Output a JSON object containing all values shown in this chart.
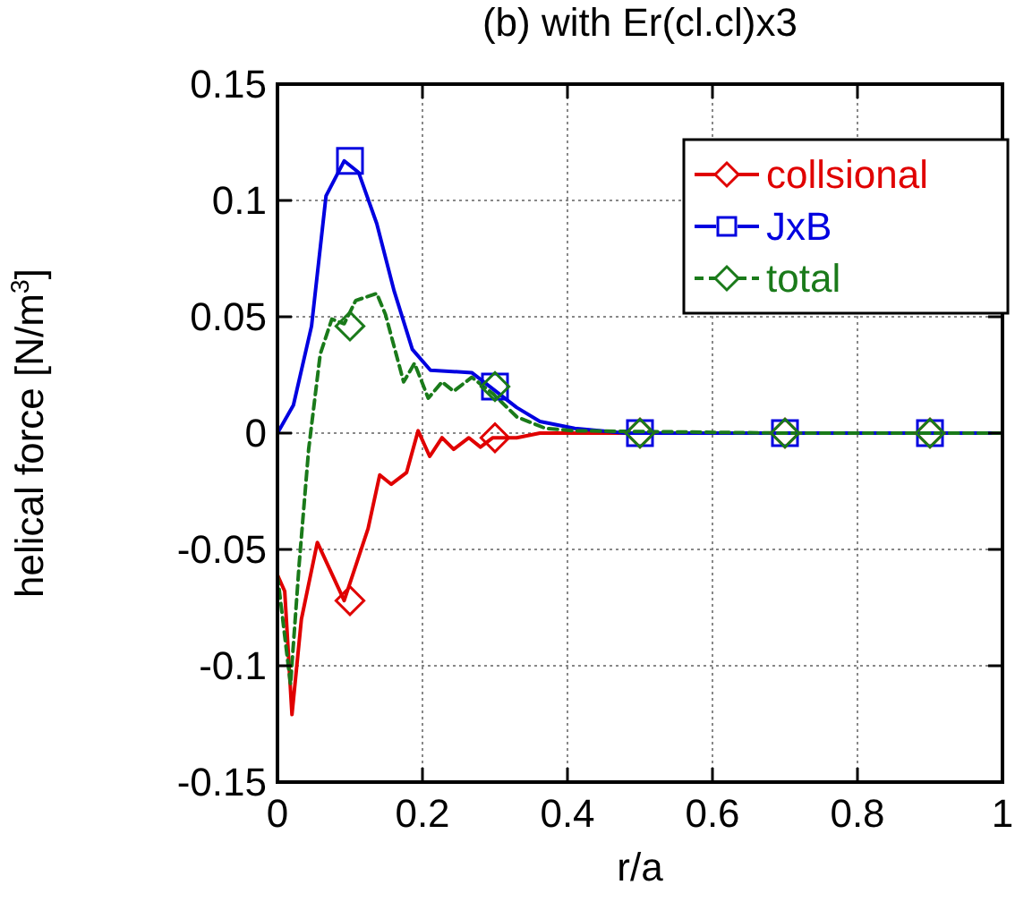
{
  "chart_data": {
    "type": "line",
    "title": "(b) with Er(cl.cl)x3",
    "xlabel": "r/a",
    "ylabel": "helical force [N/m$^{3}$]",
    "xlim": [
      0,
      1
    ],
    "xticks": [
      0,
      0.2,
      0.4,
      0.6,
      0.8,
      1
    ],
    "ylim": [
      -0.15,
      0.15
    ],
    "yticks": [
      -0.15,
      -0.1,
      -0.05,
      0,
      0.05,
      0.1,
      0.15
    ],
    "grid": true,
    "legend": "top right",
    "series": [
      {
        "marker": "none",
        "line_style": "solid",
        "color": "#e00000",
        "x": [
          0,
          0.01,
          0.02,
          0.033,
          0.055,
          0.092,
          0.125,
          0.141,
          0.157,
          0.178,
          0.194,
          0.21,
          0.227,
          0.243,
          0.264,
          0.28,
          0.297,
          0.33,
          0.362,
          0.5,
          0.7,
          1
        ],
        "values": [
          -0.061,
          -0.068,
          -0.121,
          -0.08,
          -0.047,
          -0.072,
          -0.041,
          -0.018,
          -0.022,
          -0.017,
          0.001,
          -0.01,
          -0.002,
          -0.007,
          -0.002,
          -0.006,
          -0.002,
          -0.002,
          0,
          0,
          0,
          0
        ]
      },
      {
        "marker": "none",
        "line_style": "solid",
        "color": "#0000e0",
        "x": [
          0,
          0.022,
          0.047,
          0.067,
          0.092,
          0.112,
          0.137,
          0.161,
          0.186,
          0.211,
          0.268,
          0.297,
          0.33,
          0.362,
          0.41,
          0.48,
          0.7,
          1
        ],
        "values": [
          0,
          0.012,
          0.046,
          0.102,
          0.117,
          0.112,
          0.09,
          0.061,
          0.036,
          0.027,
          0.026,
          0.019,
          0.011,
          0.005,
          0.002,
          0,
          0,
          0
        ]
      },
      {
        "marker": "none",
        "line_style": "dashed",
        "color": "#1a7a1a",
        "x": [
          0,
          0.018,
          0.03,
          0.043,
          0.059,
          0.075,
          0.092,
          0.108,
          0.137,
          0.149,
          0.174,
          0.189,
          0.208,
          0.227,
          0.243,
          0.268,
          0.297,
          0.33,
          0.37,
          0.41,
          0.7,
          1
        ],
        "values": [
          -0.061,
          -0.108,
          -0.056,
          -0.007,
          0.034,
          0.049,
          0.047,
          0.057,
          0.06,
          0.051,
          0.022,
          0.03,
          0.015,
          0.022,
          0.018,
          0.024,
          0.017,
          0.007,
          0.002,
          0.001,
          0,
          0
        ]
      },
      {
        "type": "scatter",
        "name": "collsional",
        "marker": "diamond",
        "line_style": "solid",
        "color": "#e00000",
        "x": [
          0.1,
          0.3,
          0.5,
          0.7,
          0.9
        ],
        "values": [
          -0.072,
          -0.002,
          0,
          0,
          0
        ]
      },
      {
        "type": "scatter",
        "name": "JxB",
        "marker": "square",
        "line_style": "solid",
        "color": "#0000e0",
        "x": [
          0.1,
          0.3,
          0.5,
          0.7,
          0.9
        ],
        "values": [
          0.117,
          0.02,
          0,
          0,
          0
        ]
      },
      {
        "type": "scatter",
        "name": "total",
        "marker": "diamond",
        "line_style": "dashed",
        "color": "#1a7a1a",
        "x": [
          0.1,
          0.3,
          0.5,
          0.7,
          0.9
        ],
        "values": [
          0.046,
          0.02,
          0,
          0,
          0
        ]
      }
    ]
  }
}
